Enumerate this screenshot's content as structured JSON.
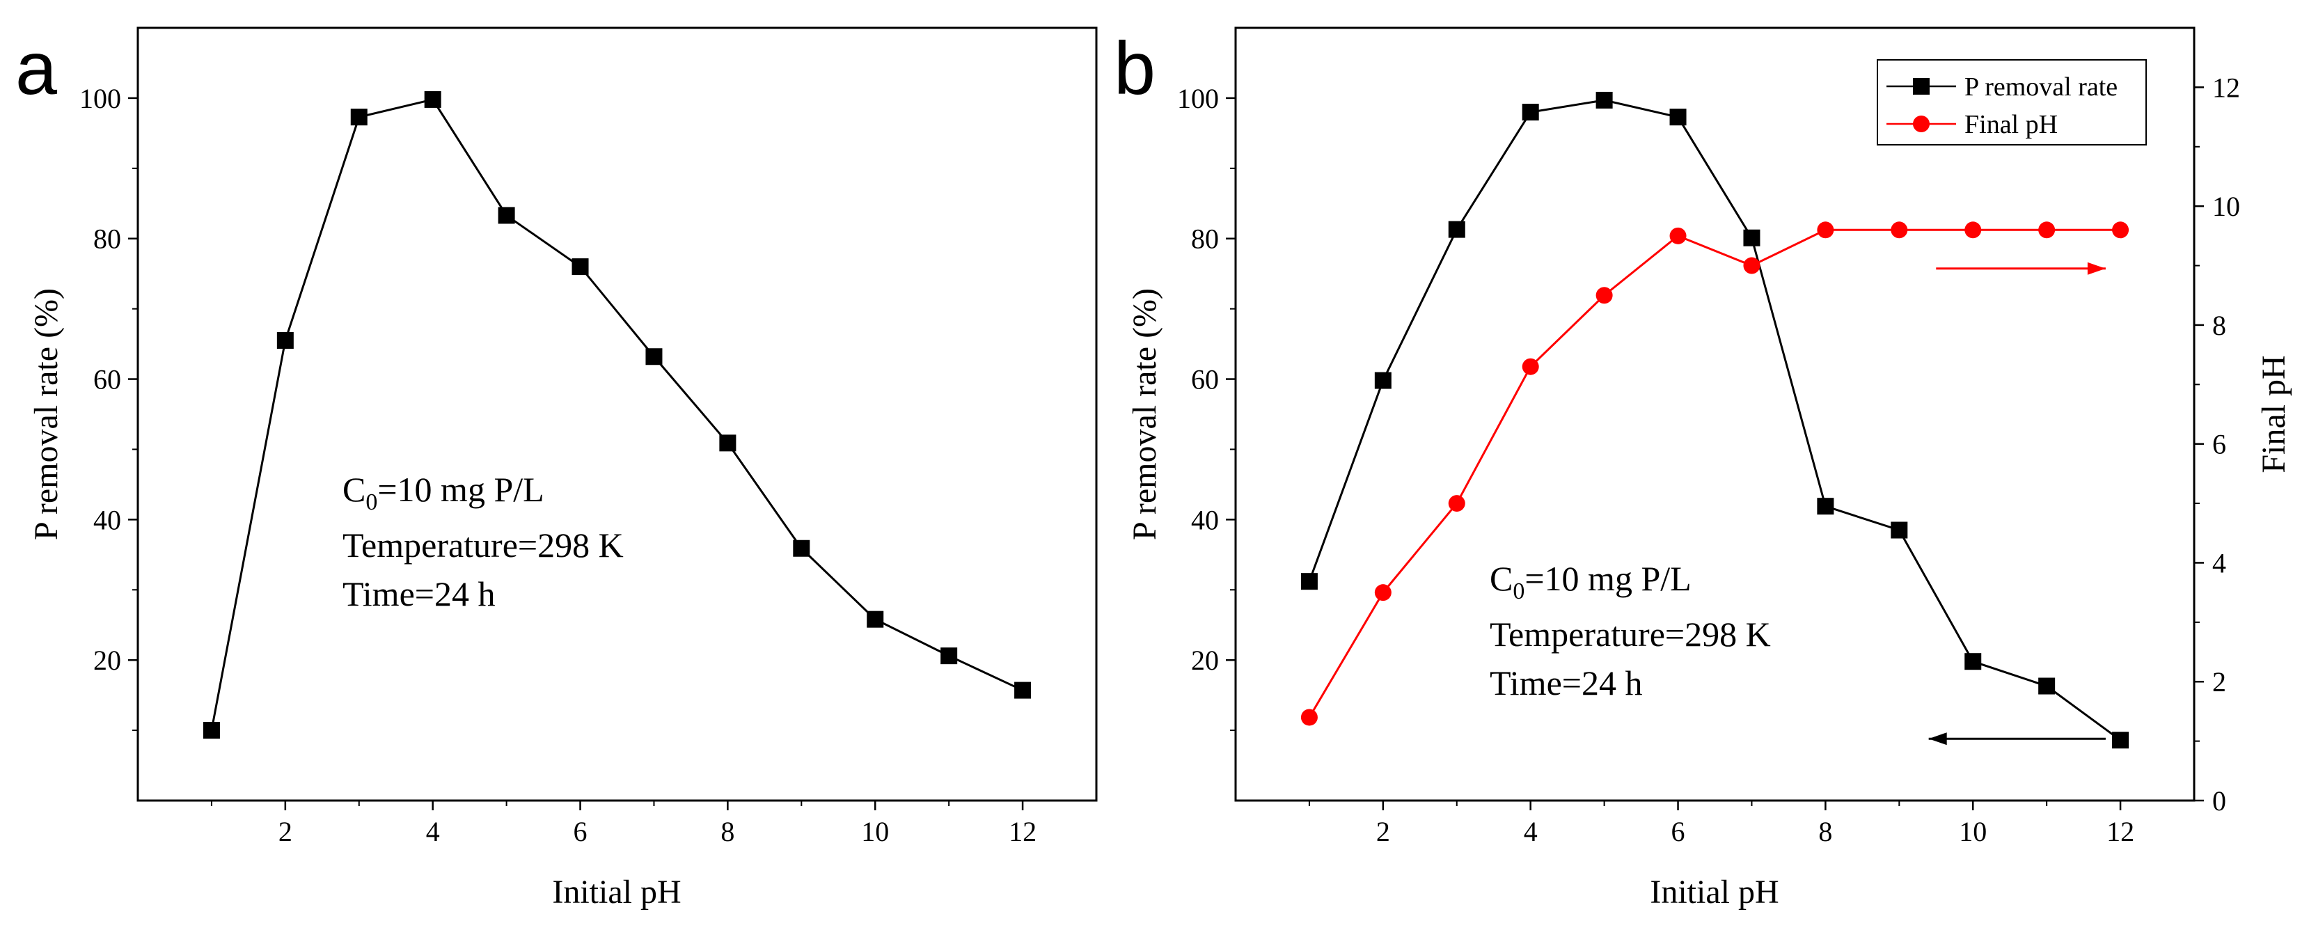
{
  "chart_data": [
    {
      "panel_label": "a",
      "type": "line",
      "xlabel": "Initial pH",
      "ylabel": "P removal rate (%)",
      "xlim": [
        0,
        13
      ],
      "ylim": [
        0,
        110
      ],
      "xticks": [
        2,
        4,
        6,
        8,
        10,
        12
      ],
      "yticks": [
        20,
        40,
        60,
        80,
        100
      ],
      "annotations": [
        "C0=10 mg P/L",
        "Temperature=298 K",
        "Time=24 h"
      ],
      "series": [
        {
          "name": "P removal rate",
          "color": "#000000",
          "marker": "square",
          "x": [
            1,
            2,
            3,
            4,
            5,
            6,
            7,
            8,
            9,
            10,
            11,
            12
          ],
          "y": [
            10,
            65.5,
            97.3,
            99.8,
            83.3,
            76,
            63.2,
            50.9,
            35.9,
            25.8,
            20.6,
            15.7
          ]
        }
      ]
    },
    {
      "panel_label": "b",
      "type": "line",
      "xlabel": "Initial pH",
      "ylabel": "P removal rate (%)",
      "y2label": "Final pH",
      "xlim": [
        0,
        13
      ],
      "ylim": [
        0,
        110
      ],
      "y2lim": [
        0,
        13
      ],
      "xticks": [
        2,
        4,
        6,
        8,
        10,
        12
      ],
      "yticks": [
        20,
        40,
        60,
        80,
        100
      ],
      "y2ticks": [
        0,
        2,
        4,
        6,
        8,
        10,
        12
      ],
      "annotations": [
        "C0=10 mg P/L",
        "Temperature=298 K",
        "Time=24 h"
      ],
      "legend_position": "top-right",
      "series": [
        {
          "name": "P removal rate",
          "color": "#000000",
          "marker": "square",
          "axis": "left",
          "x": [
            1,
            2,
            3,
            4,
            5,
            6,
            7,
            8,
            9,
            10,
            11,
            12
          ],
          "y": [
            31.2,
            59.8,
            81.3,
            98,
            99.7,
            97.3,
            80.1,
            41.9,
            38.5,
            19.8,
            16.3,
            8.6
          ]
        },
        {
          "name": "Final pH",
          "color": "#ff0000",
          "marker": "circle",
          "axis": "right",
          "x": [
            1,
            2,
            3,
            4,
            5,
            6,
            7,
            8,
            9,
            10,
            11,
            12
          ],
          "y": [
            1.4,
            3.5,
            5.0,
            7.3,
            8.5,
            9.5,
            9.0,
            9.6,
            9.6,
            9.6,
            9.6,
            9.6
          ]
        }
      ],
      "arrows": [
        {
          "series": "Final pH",
          "direction": "right",
          "color": "#ff0000"
        },
        {
          "series": "P removal rate",
          "direction": "left",
          "color": "#000000"
        }
      ]
    }
  ]
}
